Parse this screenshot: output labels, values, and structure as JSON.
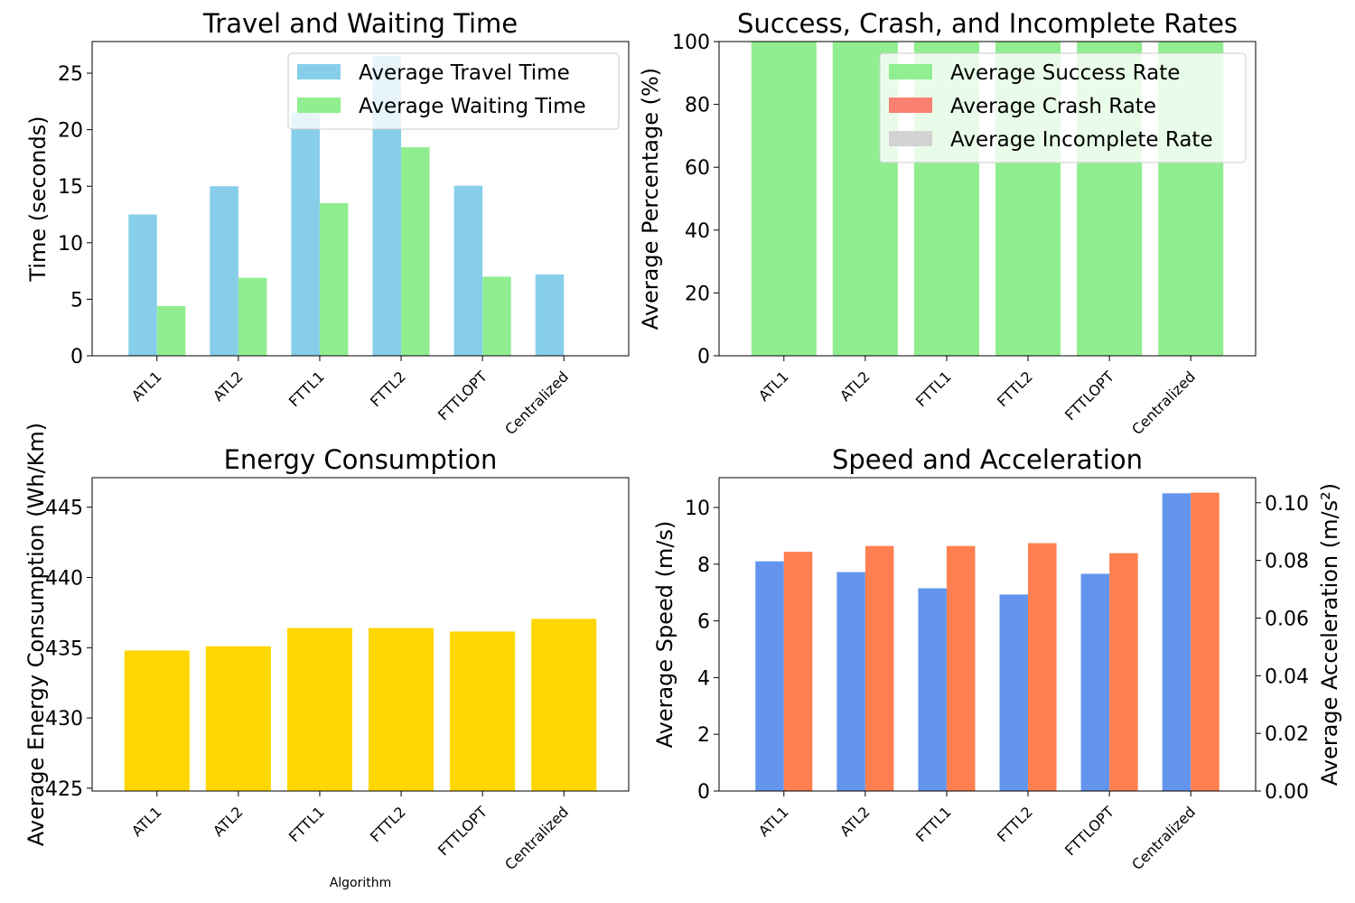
{
  "chart_data": [
    {
      "type": "bar",
      "title": "Travel and Waiting Time",
      "xlabel": "",
      "ylabel": "Time (seconds)",
      "categories": [
        "ATL1",
        "ATL2",
        "FTTL1",
        "FTTL2",
        "FTTLOPT",
        "Centralized"
      ],
      "series": [
        {
          "name": "Average Travel Time",
          "values": [
            12.5,
            15.0,
            21.5,
            26.5,
            15.05,
            7.2
          ],
          "color": "#87CEEB"
        },
        {
          "name": "Average Waiting Time",
          "values": [
            4.4,
            6.9,
            13.5,
            18.45,
            7.0,
            0
          ],
          "color": "#90EE90"
        }
      ],
      "ylim": [
        0,
        27.8
      ],
      "yticks": [
        0,
        5,
        10,
        15,
        20,
        25
      ],
      "legend": "top-right"
    },
    {
      "type": "bar",
      "stacked": true,
      "title": "Success, Crash, and Incomplete Rates",
      "xlabel": "",
      "ylabel": "Average Percentage (%)",
      "categories": [
        "ATL1",
        "ATL2",
        "FTTL1",
        "FTTL2",
        "FTTLOPT",
        "Centralized"
      ],
      "series": [
        {
          "name": "Average Success Rate",
          "values": [
            100,
            100,
            100,
            100,
            100,
            100
          ],
          "color": "#90EE90"
        },
        {
          "name": "Average Crash Rate",
          "values": [
            0,
            0,
            0,
            0,
            0,
            0
          ],
          "color": "#FA8072"
        },
        {
          "name": "Average Incomplete Rate",
          "values": [
            0,
            0,
            0,
            0,
            0,
            0
          ],
          "color": "#D3D3D3"
        }
      ],
      "ylim": [
        0,
        100
      ],
      "yticks": [
        0,
        20,
        40,
        60,
        80,
        100
      ],
      "legend": "top-right"
    },
    {
      "type": "bar",
      "title": "Energy Consumption",
      "xlabel": "Algorithm",
      "ylabel": "Average Energy Consumption (Wh/Km)",
      "categories": [
        "ATL1",
        "ATL2",
        "FTTL1",
        "FTTL2",
        "FTTLOPT",
        "Centralized"
      ],
      "values": [
        434.8,
        435.1,
        436.4,
        436.4,
        436.15,
        437.05
      ],
      "color": "#FFD700",
      "ylim": [
        424.8,
        447.1
      ],
      "yticks": [
        425,
        430,
        435,
        440,
        445
      ]
    },
    {
      "type": "bar",
      "title": "Speed and Acceleration",
      "xlabel": "",
      "ylabel": "Average Speed (m/s)",
      "ylabel_right": "Average Acceleration (m/s²)",
      "categories": [
        "ATL1",
        "ATL2",
        "FTTL1",
        "FTTL2",
        "FTTLOPT",
        "Centralized"
      ],
      "series": [
        {
          "name": "Average Speed",
          "axis": "left",
          "values": [
            8.1,
            7.72,
            7.15,
            6.93,
            7.66,
            10.5
          ],
          "color": "#6495ED"
        },
        {
          "name": "Average Acceleration",
          "axis": "right",
          "values": [
            0.083,
            0.085,
            0.085,
            0.086,
            0.0825,
            0.1035
          ],
          "color": "#FF7F50"
        }
      ],
      "ylim": [
        0,
        11.05
      ],
      "yticks": [
        0,
        2,
        4,
        6,
        8,
        10
      ],
      "ylim_right": [
        0,
        0.1087
      ],
      "yticks_right": [
        "0.00",
        "0.02",
        "0.04",
        "0.06",
        "0.08",
        "0.10"
      ]
    }
  ]
}
